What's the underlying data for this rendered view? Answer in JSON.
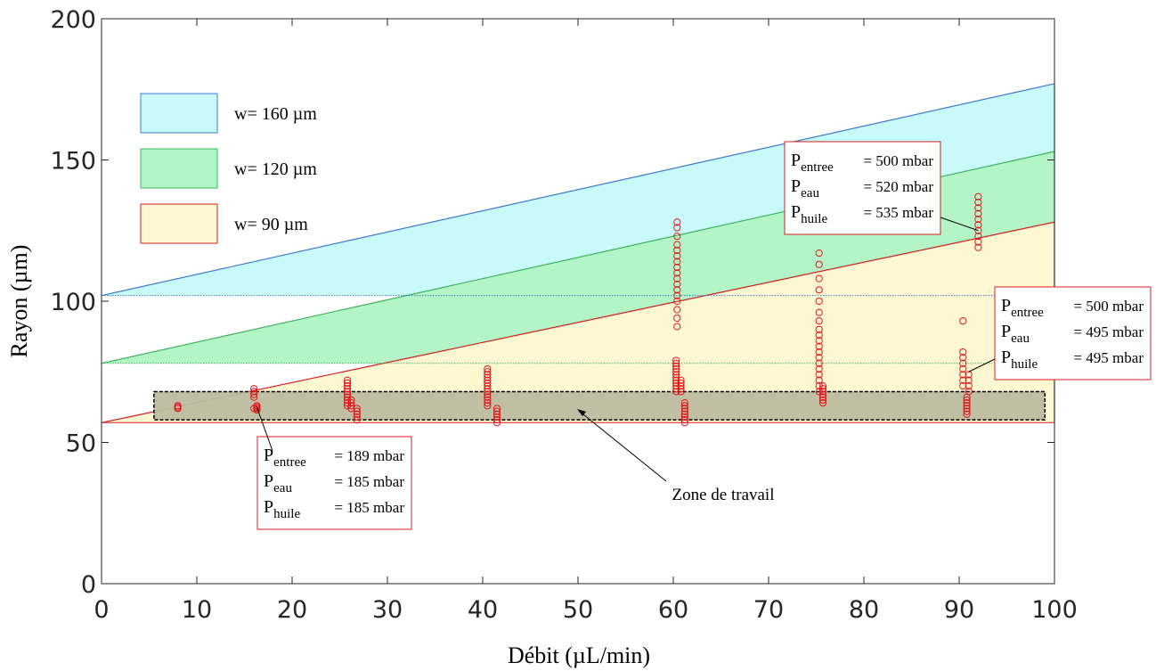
{
  "chart_data": {
    "type": "scatter",
    "xlabel": "Débit (µL/min)",
    "ylabel": "Rayon (µm)",
    "xlim": [
      0,
      100
    ],
    "ylim": [
      0,
      200
    ],
    "xticks": [
      "0",
      "10",
      "20",
      "30",
      "40",
      "50",
      "60",
      "70",
      "80",
      "90",
      "100"
    ],
    "yticks": [
      "0",
      "50",
      "100",
      "150",
      "200"
    ],
    "grid": false,
    "legend_position": "top-left",
    "legend": [
      {
        "label": "w= 160 µm",
        "fill": "#c8fafa",
        "stroke": "#3b7bd1"
      },
      {
        "label": "w= 120 µm",
        "fill": "#b4f5c8",
        "stroke": "#3cb55a"
      },
      {
        "label": "w= 90 µm",
        "fill": "#fdf8d2",
        "stroke": "#d01f1f"
      }
    ],
    "bands": [
      {
        "name": "w= 160 µm",
        "fill": "#c8fafa",
        "stroke": "#3b7bd1",
        "lower": [
          [
            0,
            102
          ],
          [
            100,
            102
          ]
        ],
        "upper": [
          [
            0,
            102
          ],
          [
            100,
            177
          ]
        ],
        "right_edge": [
          153,
          177
        ]
      },
      {
        "name": "w= 120 µm",
        "fill": "#b4f5c8",
        "stroke": "#3cb55a",
        "lower": [
          [
            0,
            78
          ],
          [
            100,
            78
          ]
        ],
        "upper": [
          [
            0,
            78
          ],
          [
            100,
            153
          ]
        ],
        "right_edge": [
          128,
          153
        ]
      },
      {
        "name": "w= 90 µm",
        "fill": "#fdf8d2",
        "stroke": "#d01f1f",
        "lower": [
          [
            0,
            57
          ],
          [
            100,
            57
          ]
        ],
        "upper": [
          [
            0,
            57
          ],
          [
            100,
            128
          ]
        ],
        "right_edge": [
          57,
          128
        ]
      }
    ],
    "scatter_color": "#e3161b",
    "scatter_groups": [
      {
        "x": 8,
        "y": [
          62,
          62.5,
          63
        ]
      },
      {
        "x": 16,
        "y": [
          62,
          66,
          67,
          68,
          69
        ]
      },
      {
        "x": 16.3,
        "y": [
          61.5,
          62,
          62.5,
          63
        ]
      },
      {
        "x": 25.8,
        "y": [
          63,
          64,
          65,
          66,
          67,
          68,
          69,
          70,
          71,
          72
        ]
      },
      {
        "x": 26.2,
        "y": [
          62,
          63,
          64,
          65
        ]
      },
      {
        "x": 26.8,
        "y": [
          58,
          59,
          60,
          61,
          62
        ]
      },
      {
        "x": 40.5,
        "y": [
          63,
          64,
          65,
          66,
          67,
          68,
          69,
          70,
          71,
          72,
          73,
          74,
          75,
          76
        ]
      },
      {
        "x": 41.5,
        "y": [
          57,
          58,
          59,
          60,
          61,
          62
        ]
      },
      {
        "x": 60.3,
        "y": [
          68,
          69,
          70,
          71,
          72,
          73,
          74,
          75,
          76,
          77,
          78,
          79
        ]
      },
      {
        "x": 60.4,
        "y": [
          91,
          94,
          97,
          100,
          102,
          104,
          106,
          108,
          110,
          112,
          114,
          116,
          118,
          120,
          123,
          126,
          128
        ]
      },
      {
        "x": 60.8,
        "y": [
          68,
          69,
          70,
          71,
          72
        ]
      },
      {
        "x": 61.2,
        "y": [
          57,
          58,
          59,
          60,
          61,
          62,
          63,
          64
        ]
      },
      {
        "x": 75.3,
        "y": [
          68,
          70,
          72,
          74,
          76,
          78,
          80,
          82,
          84,
          86,
          88,
          90,
          93,
          96,
          100,
          104,
          108,
          113,
          117
        ]
      },
      {
        "x": 75.7,
        "y": [
          64,
          65,
          66,
          67,
          68,
          69,
          70
        ]
      },
      {
        "x": 90.4,
        "y": [
          70,
          72,
          74,
          76,
          78,
          80,
          82,
          93
        ]
      },
      {
        "x": 90.8,
        "y": [
          60,
          61,
          62,
          63,
          64,
          65,
          66
        ]
      },
      {
        "x": 91.0,
        "y": [
          68,
          70,
          72,
          74
        ]
      },
      {
        "x": 92.0,
        "y": [
          119,
          121,
          123,
          125,
          127,
          129,
          131,
          133,
          135,
          137
        ]
      }
    ],
    "zone": {
      "label": "Zone de travail",
      "x": [
        5.5,
        99
      ],
      "y": [
        58,
        68
      ],
      "fill": "#bdbca0"
    },
    "annotations": [
      {
        "lines": [
          {
            "p": "P",
            "sub": "entree",
            "val": "=  189 mbar"
          },
          {
            "p": "P",
            "sub": "eau",
            "val": "=  185 mbar"
          },
          {
            "p": "P",
            "sub": "huile",
            "val": "=  185 mbar"
          }
        ],
        "target": [
          16.3,
          62.5
        ]
      },
      {
        "lines": [
          {
            "p": "P",
            "sub": "entree",
            "val": "=  500 mbar"
          },
          {
            "p": "P",
            "sub": "eau",
            "val": "=  520 mbar"
          },
          {
            "p": "P",
            "sub": "huile",
            "val": "=  535 mbar"
          }
        ],
        "target": [
          92,
          125
        ]
      },
      {
        "lines": [
          {
            "p": "P",
            "sub": "entree",
            "val": "=  500 mbar"
          },
          {
            "p": "P",
            "sub": "eau",
            "val": "=  495 mbar"
          },
          {
            "p": "P",
            "sub": "huile",
            "val": "=  495 mbar"
          }
        ],
        "target": [
          91,
          75
        ]
      }
    ]
  }
}
